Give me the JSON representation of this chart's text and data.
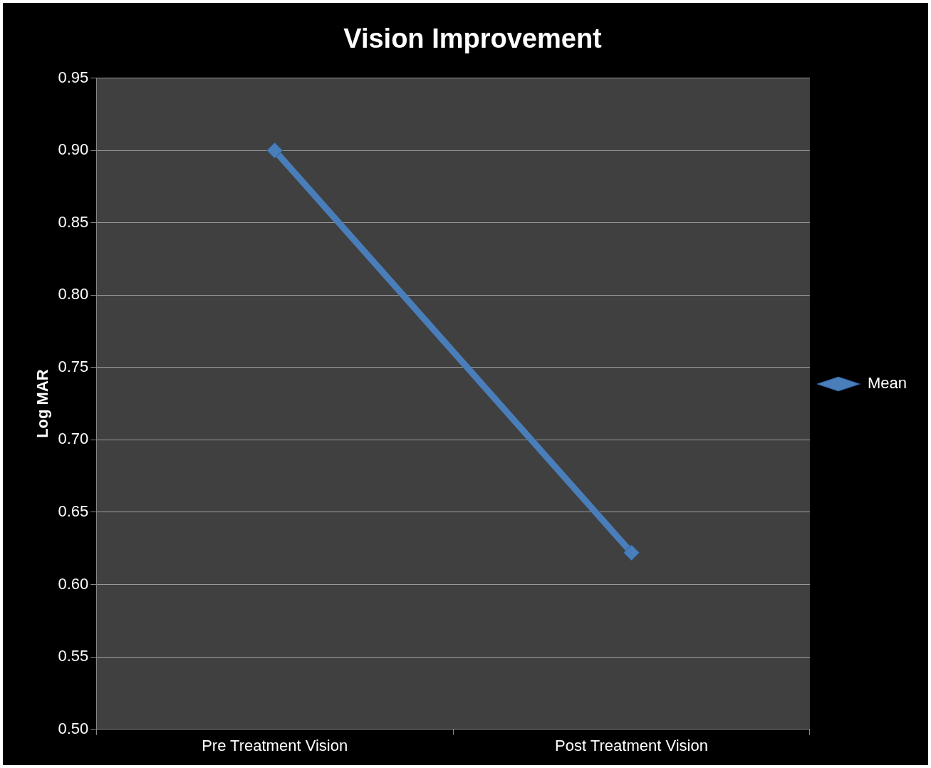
{
  "chart_data": {
    "type": "line",
    "title": "Vision Improvement",
    "ylabel": "Log MAR",
    "categories": [
      "Pre Treatment Vision",
      "Post Treatment Vision"
    ],
    "series": [
      {
        "name": "Mean",
        "color": "#4a7ebb",
        "values": [
          0.9,
          0.622
        ]
      }
    ],
    "ylim": [
      0.5,
      0.95
    ],
    "yticks": [
      {
        "value": 0.5,
        "label": "0.50"
      },
      {
        "value": 0.55,
        "label": "0.55"
      },
      {
        "value": 0.6,
        "label": "0.60"
      },
      {
        "value": 0.65,
        "label": "0.65"
      },
      {
        "value": 0.7,
        "label": "0.70"
      },
      {
        "value": 0.75,
        "label": "0.75"
      },
      {
        "value": 0.8,
        "label": "0.80"
      },
      {
        "value": 0.85,
        "label": "0.85"
      },
      {
        "value": 0.9,
        "label": "0.90"
      },
      {
        "value": 0.95,
        "label": "0.95"
      }
    ],
    "grid": "y",
    "legend": "right",
    "marker": "diamond",
    "line_style": "solid"
  }
}
